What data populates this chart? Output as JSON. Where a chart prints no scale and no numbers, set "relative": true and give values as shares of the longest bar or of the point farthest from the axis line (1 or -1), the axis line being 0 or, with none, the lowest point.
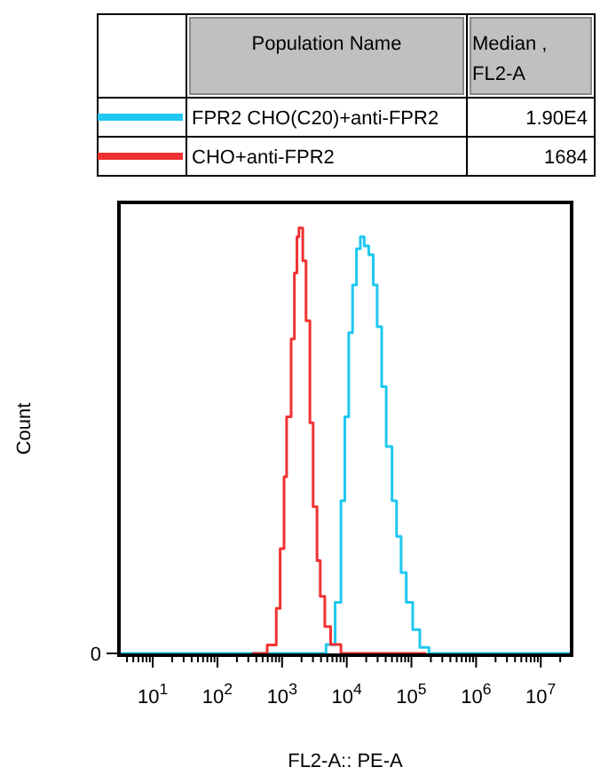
{
  "chart_data": {
    "type": "step",
    "xlabel": "FL2-A:: PE-A",
    "ylabel": "Count",
    "legend_title": "Population Name",
    "legend": "top",
    "relative": true,
    "log": "x",
    "grid": false,
    "annotations": [
      "Median , FL2-A",
      "1.90E4",
      "1684",
      "0"
    ],
    "xlim": [
      3,
      30000000
    ],
    "xticks": [
      {
        "value": 4,
        "label": null
      },
      {
        "value": 5,
        "label": null
      },
      {
        "value": 6,
        "label": null
      },
      {
        "value": 7,
        "label": null
      },
      {
        "value": 8,
        "label": null
      },
      {
        "value": 9,
        "label": null
      },
      {
        "value": 10,
        "label": "10$^{1}$"
      },
      {
        "value": 20,
        "label": null
      },
      {
        "value": 30,
        "label": null
      },
      {
        "value": 40,
        "label": null
      },
      {
        "value": 50,
        "label": null
      },
      {
        "value": 60,
        "label": null
      },
      {
        "value": 70,
        "label": null
      },
      {
        "value": 80,
        "label": null
      },
      {
        "value": 90,
        "label": null
      },
      {
        "value": 100,
        "label": "10$^{2}$"
      },
      {
        "value": 200,
        "label": null
      },
      {
        "value": 300,
        "label": null
      },
      {
        "value": 400,
        "label": null
      },
      {
        "value": 500,
        "label": null
      },
      {
        "value": 600,
        "label": null
      },
      {
        "value": 700,
        "label": null
      },
      {
        "value": 800,
        "label": null
      },
      {
        "value": 900,
        "label": null
      },
      {
        "value": 1000,
        "label": "10$^{3}$"
      },
      {
        "value": 2000,
        "label": null
      },
      {
        "value": 3000,
        "label": null
      },
      {
        "value": 4000,
        "label": null
      },
      {
        "value": 5000,
        "label": null
      },
      {
        "value": 6000,
        "label": null
      },
      {
        "value": 7000,
        "label": null
      },
      {
        "value": 8000,
        "label": null
      },
      {
        "value": 9000,
        "label": null
      },
      {
        "value": 10000,
        "label": "10$^{4}$"
      },
      {
        "value": 20000,
        "label": null
      },
      {
        "value": 30000,
        "label": null
      },
      {
        "value": 40000,
        "label": null
      },
      {
        "value": 50000,
        "label": null
      },
      {
        "value": 60000,
        "label": null
      },
      {
        "value": 70000,
        "label": null
      },
      {
        "value": 80000,
        "label": null
      },
      {
        "value": 90000,
        "label": null
      },
      {
        "value": 100000,
        "label": "10$^{5}$"
      },
      {
        "value": 200000,
        "label": null
      },
      {
        "value": 300000,
        "label": null
      },
      {
        "value": 400000,
        "label": null
      },
      {
        "value": 500000,
        "label": null
      },
      {
        "value": 600000,
        "label": null
      },
      {
        "value": 700000,
        "label": null
      },
      {
        "value": 800000,
        "label": null
      },
      {
        "value": 900000,
        "label": null
      },
      {
        "value": 1000000,
        "label": "10$^{6}$"
      },
      {
        "value": 2000000,
        "label": null
      },
      {
        "value": 3000000,
        "label": null
      },
      {
        "value": 4000000,
        "label": null
      },
      {
        "value": 5000000,
        "label": null
      },
      {
        "value": 6000000,
        "label": null
      },
      {
        "value": 7000000,
        "label": null
      },
      {
        "value": 8000000,
        "label": null
      },
      {
        "value": 9000000,
        "label": null
      },
      {
        "value": 10000000,
        "label": "10$^{7}$"
      },
      {
        "value": 20000000,
        "label": null
      }
    ],
    "series": [
      {
        "name": "FPR2 CHO(C20)+anti-FPR2",
        "color": "#1ec8f0",
        "x": [
          3,
          3467,
          4786,
          6607,
          8128,
          9333,
          10720,
          12300,
          14130,
          16220,
          18620,
          21880,
          25700,
          29510,
          34670,
          40740,
          50120,
          58880,
          69180,
          83180,
          104700,
          134900,
          186200,
          30000000
        ],
        "values": [
          0,
          0,
          0.021,
          0.12,
          0.359,
          0.556,
          0.754,
          0.866,
          0.951,
          0.979,
          0.958,
          0.937,
          0.866,
          0.768,
          0.627,
          0.486,
          0.359,
          0.275,
          0.19,
          0.12,
          0.056,
          0.014,
          0,
          0
        ]
      },
      {
        "name": "CHO+anti-FPR2",
        "color": "#f03232",
        "x": [
          347,
          589,
          813,
          933,
          1072,
          1175,
          1380,
          1549,
          1698,
          1820,
          2089,
          2344,
          2692,
          3020,
          3467,
          3890,
          4571,
          5623,
          8128,
          169800
        ],
        "values": [
          0,
          0.02,
          0.106,
          0.246,
          0.415,
          0.556,
          0.739,
          0.894,
          0.979,
          1,
          0.923,
          0.782,
          0.542,
          0.345,
          0.218,
          0.134,
          0.063,
          0.021,
          0,
          0
        ]
      }
    ]
  }
}
